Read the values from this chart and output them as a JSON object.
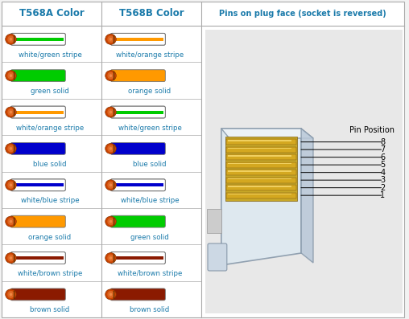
{
  "col1_header": "T568A Color",
  "col2_header": "T568B Color",
  "col3_header": "Pins on plug face (socket is reversed)",
  "header_color": "#1a7aaa",
  "grid_color": "#aaaaaa",
  "bg_color": "#f2f2f2",
  "text_color": "#1a7aaa",
  "rows": [
    {
      "t568a_label": "white/green stripe",
      "t568b_label": "white/orange stripe",
      "t568a_wire": {
        "style": "stripe",
        "base": "#ffffff",
        "stripe": "#00cc00"
      },
      "t568b_wire": {
        "style": "stripe",
        "base": "#ffffff",
        "stripe": "#ff9900"
      }
    },
    {
      "t568a_label": "green solid",
      "t568b_label": "orange solid",
      "t568a_wire": {
        "style": "solid",
        "color": "#00cc00"
      },
      "t568b_wire": {
        "style": "solid",
        "color": "#ff9900"
      }
    },
    {
      "t568a_label": "white/orange stripe",
      "t568b_label": "white/green stripe",
      "t568a_wire": {
        "style": "stripe",
        "base": "#ffffff",
        "stripe": "#ff9900"
      },
      "t568b_wire": {
        "style": "stripe",
        "base": "#ffffff",
        "stripe": "#00cc00"
      }
    },
    {
      "t568a_label": "blue solid",
      "t568b_label": "blue solid",
      "t568a_wire": {
        "style": "solid",
        "color": "#0000cc"
      },
      "t568b_wire": {
        "style": "solid",
        "color": "#0000cc"
      }
    },
    {
      "t568a_label": "white/blue stripe",
      "t568b_label": "white/blue stripe",
      "t568a_wire": {
        "style": "stripe",
        "base": "#ffffff",
        "stripe": "#0000cc"
      },
      "t568b_wire": {
        "style": "stripe",
        "base": "#ffffff",
        "stripe": "#0000cc"
      }
    },
    {
      "t568a_label": "orange solid",
      "t568b_label": "green solid",
      "t568a_wire": {
        "style": "solid",
        "color": "#ff9900"
      },
      "t568b_wire": {
        "style": "solid",
        "color": "#00cc00"
      }
    },
    {
      "t568a_label": "white/brown stripe",
      "t568b_label": "white/brown stripe",
      "t568a_wire": {
        "style": "stripe",
        "base": "#ffffff",
        "stripe": "#8B1a00"
      },
      "t568b_wire": {
        "style": "stripe",
        "base": "#ffffff",
        "stripe": "#8B1a00"
      }
    },
    {
      "t568a_label": "brown solid",
      "t568b_label": "brown solid",
      "t568a_wire": {
        "style": "solid",
        "color": "#8B1a00"
      },
      "t568b_wire": {
        "style": "solid",
        "color": "#8B1a00"
      }
    }
  ],
  "pin_labels": [
    "8",
    "7",
    "6",
    "5",
    "4",
    "3",
    "2",
    "1"
  ],
  "cap_color_dark": "#cc4400",
  "cap_color_mid": "#dd6622",
  "cap_color_light": "#ee8844"
}
